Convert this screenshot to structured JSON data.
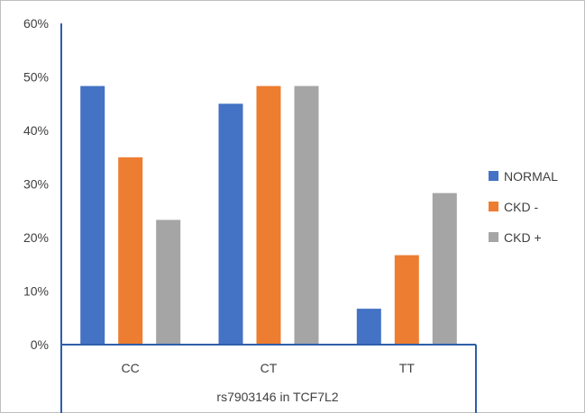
{
  "chart_data": {
    "type": "bar",
    "title": "",
    "xlabel": "rs7903146 in TCF7L2",
    "ylabel": "",
    "ylim": [
      0,
      60
    ],
    "y_ticks": [
      "0%",
      "10%",
      "20%",
      "30%",
      "40%",
      "50%",
      "60%"
    ],
    "y_tick_values": [
      0,
      10,
      20,
      30,
      40,
      50,
      60
    ],
    "categories": [
      "CC",
      "CT",
      "TT"
    ],
    "series": [
      {
        "name": "NORMAL",
        "color": "#4472C4",
        "values": [
          48.3,
          45.0,
          6.7
        ]
      },
      {
        "name": "CKD -",
        "color": "#ED7D31",
        "values": [
          35.0,
          48.3,
          16.7
        ]
      },
      {
        "name": "CKD +",
        "color": "#A5A5A5",
        "values": [
          23.3,
          48.3,
          28.3
        ]
      }
    ],
    "legend_position": "right",
    "grid": false
  }
}
